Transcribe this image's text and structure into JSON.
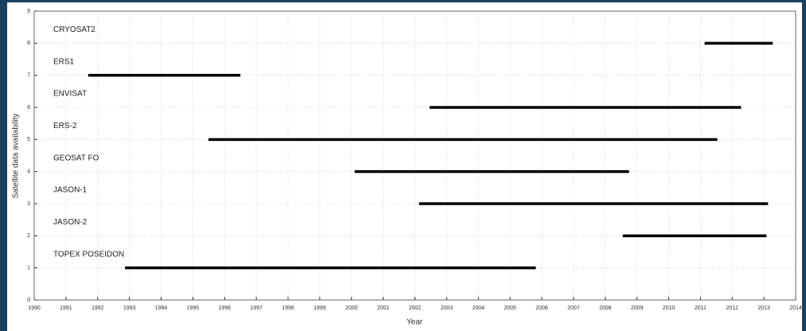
{
  "chart_data": {
    "type": "timeline",
    "xlabel": "Year",
    "ylabel": "Satellite data availability",
    "xlim": [
      1990,
      2014
    ],
    "xticks": [
      1990,
      1991,
      1992,
      1993,
      1994,
      1995,
      1996,
      1997,
      1998,
      1999,
      2000,
      2001,
      2002,
      2003,
      2004,
      2005,
      2006,
      2007,
      2008,
      2009,
      2010,
      2011,
      2012,
      2013,
      2014
    ],
    "ylim": [
      0,
      9
    ],
    "yticks": [
      0,
      1,
      2,
      3,
      4,
      5,
      6,
      7,
      8,
      9
    ],
    "grid": true,
    "color": "#000000",
    "series": [
      {
        "name": "CRYOSAT2",
        "y": 8,
        "x": [
          2011.13,
          2013.28
        ]
      },
      {
        "name": "ERS1",
        "y": 7,
        "x": [
          1991.7,
          1996.5
        ]
      },
      {
        "name": "ENVISAT",
        "y": 6,
        "x": [
          2002.46,
          2012.28
        ]
      },
      {
        "name": "ERS-2",
        "y": 5,
        "x": [
          1995.49,
          2011.53
        ]
      },
      {
        "name": "GEOSAT FO",
        "y": 4,
        "x": [
          2000.1,
          2008.75
        ]
      },
      {
        "name": "JASON-1",
        "y": 3,
        "x": [
          2002.13,
          2013.13
        ]
      },
      {
        "name": "JASON-2",
        "y": 2,
        "x": [
          2008.55,
          2013.08
        ]
      },
      {
        "name": "TOPEX POSEIDON",
        "y": 1,
        "x": [
          1992.86,
          2005.81
        ]
      }
    ]
  }
}
